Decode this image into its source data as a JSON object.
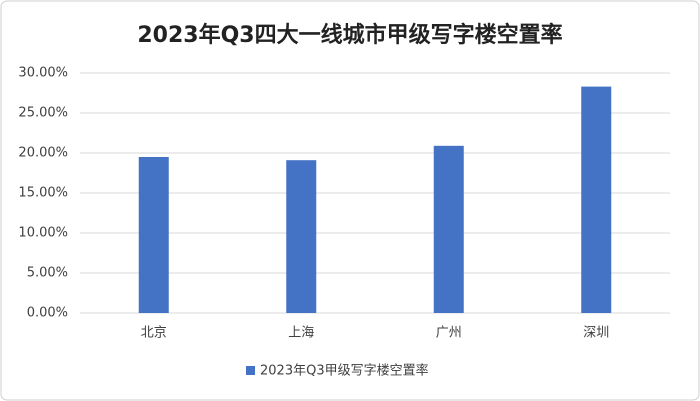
{
  "chart_data": {
    "type": "bar",
    "title": "2023年Q3四大一线城市甲级写字楼空置率",
    "categories": [
      "北京",
      "上海",
      "广州",
      "深圳"
    ],
    "series": [
      {
        "name": "2023年Q3甲级写字楼空置率",
        "color": "#4472c4",
        "values": [
          19.5,
          19.1,
          20.9,
          28.3
        ]
      }
    ],
    "ylim": [
      0,
      30
    ],
    "yticks": [
      {
        "value": 0,
        "label": "0.00%"
      },
      {
        "value": 5,
        "label": "5.00%"
      },
      {
        "value": 10,
        "label": "10.00%"
      },
      {
        "value": 15,
        "label": "15.00%"
      },
      {
        "value": 20,
        "label": "20.00%"
      },
      {
        "value": 25,
        "label": "25.00%"
      },
      {
        "value": 30,
        "label": "30.00%"
      }
    ],
    "grid": true,
    "legend": "bottom"
  }
}
